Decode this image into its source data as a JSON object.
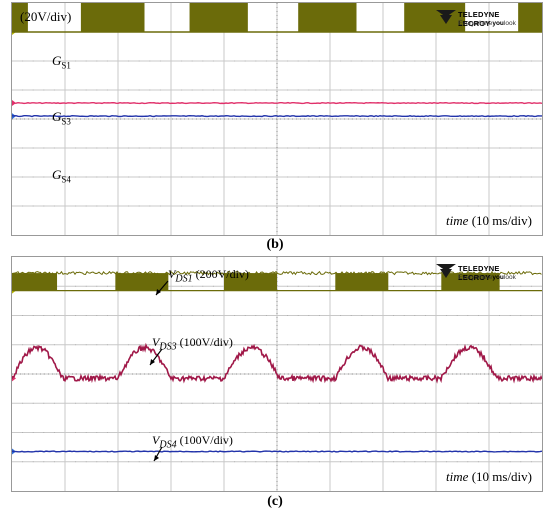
{
  "chart_data": [
    {
      "type": "line",
      "panel": "b",
      "caption": "(b)",
      "scale_label": "(20V/div)",
      "time_label": "time",
      "time_unit": "(10 ms/div)",
      "logo": {
        "brand": "TELEDYNE LECROY",
        "tagline_pre": "Everywhere",
        "tagline_bold": "you",
        "tagline_post": "look"
      },
      "grid": true,
      "x_divisions": 10,
      "y_divisions": 8,
      "xlim": [
        0,
        100
      ],
      "channels": [
        {
          "name": "G",
          "sub": "S1",
          "color": "#6b6b0a",
          "marker_color": "#b6b600",
          "level_div": 7.0,
          "mode": "pwm-burst",
          "bursts_ms": [
            [
              0,
              3
            ],
            [
              13,
              25
            ],
            [
              33.5,
              44.5
            ],
            [
              54,
              65
            ],
            [
              74,
              85.5
            ],
            [
              95.5,
              100
            ]
          ],
          "amplitude_div": 1.0
        },
        {
          "name": "G",
          "sub": "S3",
          "color": "#e0306a",
          "marker_color": "#e0306a",
          "level_div": 4.55,
          "mode": "flat"
        },
        {
          "name": "G",
          "sub": "S4",
          "color": "#2233aa",
          "marker_color": "#2e6bd6",
          "level_div": 4.1,
          "mode": "flat"
        }
      ]
    },
    {
      "type": "line",
      "panel": "c",
      "caption": "(c)",
      "time_label": "time",
      "time_unit": "(10 ms/div)",
      "logo": {
        "brand": "TELEDYNE LECROY",
        "tagline_pre": "Everywhere",
        "tagline_bold": "you",
        "tagline_post": "look"
      },
      "grid": true,
      "x_divisions": 10,
      "y_divisions": 8,
      "xlim": [
        0,
        100
      ],
      "channels": [
        {
          "name": "V",
          "sub": "DS1",
          "scale": "(200V/div)",
          "color": "#6b6b0a",
          "marker_color": "#b6b600",
          "level_div": 6.85,
          "mode": "pwm-burst-low",
          "bursts_ms": [
            [
              0,
              8.5
            ],
            [
              19.5,
              29.5
            ],
            [
              40,
              50
            ],
            [
              61,
              71
            ],
            [
              81,
              92
            ]
          ],
          "amplitude_div": 0.6
        },
        {
          "name": "V",
          "sub": "DS3",
          "scale": "(100V/div)",
          "color": "#a01848",
          "marker_color": "#e0306a",
          "level_div": 3.85,
          "mode": "half-sine",
          "humps_ms": [
            [
              0,
              9.5
            ],
            [
              20,
              30
            ],
            [
              40,
              50.5
            ],
            [
              61,
              71
            ],
            [
              81,
              91.5
            ]
          ],
          "peak_div": 1.05
        },
        {
          "name": "V",
          "sub": "DS4",
          "scale": "(100V/div)",
          "color": "#2233aa",
          "marker_color": "#2e6bd6",
          "level_div": 1.35,
          "mode": "flat"
        }
      ]
    }
  ]
}
